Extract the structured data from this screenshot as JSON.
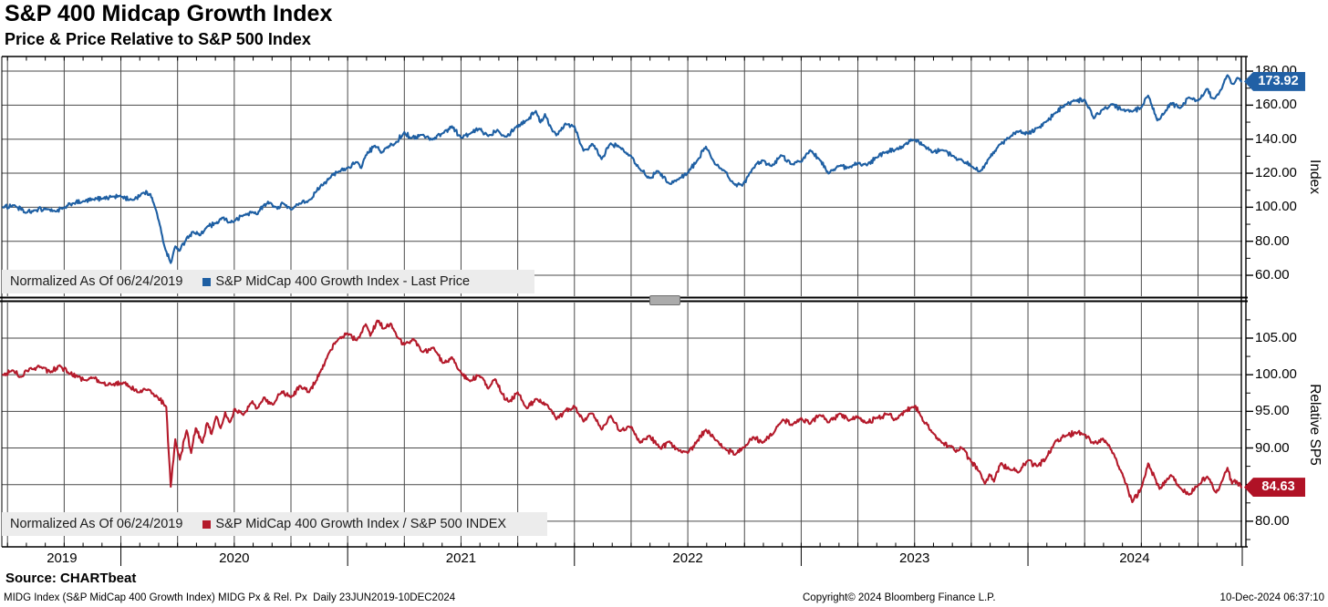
{
  "header": {
    "title": "S&P 400 Midcap Growth Index",
    "subtitle": "Price & Price Relative to S&P 500 Index"
  },
  "colors": {
    "blue": "#1e5fa3",
    "blue_badge": "#2160a5",
    "red": "#b41a2b",
    "red_badge": "#b01226",
    "grid": "#4a4a4a",
    "frame": "#000000",
    "legend_bg": "#ececec",
    "handle": "#ababab"
  },
  "x_axis": {
    "start": 2019.475,
    "end": 2024.945,
    "year_labels": [
      "2019",
      "2020",
      "2021",
      "2022",
      "2023",
      "2024"
    ],
    "year_label_positions": [
      2019.74,
      2020.5,
      2021.5,
      2022.5,
      2023.5,
      2024.47
    ],
    "year_boundaries": [
      2020,
      2021,
      2022,
      2023,
      2024,
      2024.945
    ]
  },
  "chart_data": [
    {
      "type": "line",
      "panel": "top",
      "axis_title": "Index",
      "legend_prefix": "Normalized As Of 06/24/2019",
      "series_label": "S&P MidCap 400 Growth Index - Last Price",
      "last_price_label": "173.92",
      "last_value": 173.92,
      "color": "#1e5fa3",
      "badge_color": "#2160a5",
      "noise": 1.5,
      "value_range": [
        47.7,
        188.6
      ],
      "ticks": {
        "major": [
          60,
          80,
          100,
          120,
          140,
          160,
          180
        ],
        "labels": [
          "60.00",
          "80.00",
          "100.00",
          "120.00",
          "140.00",
          "160.00",
          "180.00"
        ],
        "minor": [
          70,
          90,
          110,
          130,
          150,
          170
        ]
      },
      "points": [
        [
          2019.48,
          100
        ],
        [
          2019.53,
          101.3
        ],
        [
          2019.58,
          96.6
        ],
        [
          2019.62,
          98.2
        ],
        [
          2019.67,
          99.2
        ],
        [
          2019.71,
          97.6
        ],
        [
          2019.75,
          99.5
        ],
        [
          2019.79,
          102.4
        ],
        [
          2019.83,
          103.2
        ],
        [
          2019.88,
          104.6
        ],
        [
          2019.92,
          105.2
        ],
        [
          2019.96,
          106.2
        ],
        [
          2020.0,
          106.4
        ],
        [
          2020.05,
          104.2
        ],
        [
          2020.1,
          108.6
        ],
        [
          2020.13,
          107.8
        ],
        [
          2020.16,
          96
        ],
        [
          2020.19,
          78
        ],
        [
          2020.22,
          67.2
        ],
        [
          2020.24,
          77
        ],
        [
          2020.26,
          74.5
        ],
        [
          2020.29,
          82
        ],
        [
          2020.32,
          85.5
        ],
        [
          2020.35,
          83.5
        ],
        [
          2020.38,
          88.5
        ],
        [
          2020.42,
          90.5
        ],
        [
          2020.45,
          93.8
        ],
        [
          2020.48,
          91.2
        ],
        [
          2020.5,
          91.8
        ],
        [
          2020.54,
          95.2
        ],
        [
          2020.58,
          97.2
        ],
        [
          2020.6,
          95.8
        ],
        [
          2020.63,
          101.2
        ],
        [
          2020.66,
          102.6
        ],
        [
          2020.69,
          99
        ],
        [
          2020.71,
          102.8
        ],
        [
          2020.75,
          98.6
        ],
        [
          2020.79,
          102.2
        ],
        [
          2020.83,
          104.2
        ],
        [
          2020.86,
          109
        ],
        [
          2020.88,
          112.5
        ],
        [
          2020.92,
          117.2
        ],
        [
          2020.96,
          121
        ],
        [
          2021.0,
          123.2
        ],
        [
          2021.04,
          126.5
        ],
        [
          2021.06,
          123
        ],
        [
          2021.08,
          130.5
        ],
        [
          2021.12,
          136.2
        ],
        [
          2021.15,
          132
        ],
        [
          2021.17,
          134.8
        ],
        [
          2021.21,
          137.5
        ],
        [
          2021.25,
          144.2
        ],
        [
          2021.28,
          140.6
        ],
        [
          2021.33,
          142.6
        ],
        [
          2021.37,
          139.8
        ],
        [
          2021.42,
          143.6
        ],
        [
          2021.46,
          147.6
        ],
        [
          2021.5,
          140.8
        ],
        [
          2021.54,
          143.2
        ],
        [
          2021.58,
          146.2
        ],
        [
          2021.62,
          141.8
        ],
        [
          2021.66,
          145.6
        ],
        [
          2021.7,
          141.4
        ],
        [
          2021.74,
          147
        ],
        [
          2021.79,
          151.2
        ],
        [
          2021.83,
          156.6
        ],
        [
          2021.85,
          149.8
        ],
        [
          2021.87,
          154.8
        ],
        [
          2021.9,
          146
        ],
        [
          2021.92,
          142.2
        ],
        [
          2021.96,
          149.2
        ],
        [
          2022.0,
          147.6
        ],
        [
          2022.04,
          133.2
        ],
        [
          2022.08,
          137.2
        ],
        [
          2022.12,
          128.2
        ],
        [
          2022.16,
          137.6
        ],
        [
          2022.2,
          135.2
        ],
        [
          2022.25,
          130.2
        ],
        [
          2022.29,
          122.2
        ],
        [
          2022.33,
          117.2
        ],
        [
          2022.37,
          121.2
        ],
        [
          2022.42,
          113.8
        ],
        [
          2022.46,
          116.4
        ],
        [
          2022.5,
          120.4
        ],
        [
          2022.54,
          127.2
        ],
        [
          2022.58,
          135.6
        ],
        [
          2022.62,
          125.2
        ],
        [
          2022.66,
          121.6
        ],
        [
          2022.7,
          114.2
        ],
        [
          2022.74,
          112.6
        ],
        [
          2022.79,
          123.2
        ],
        [
          2022.83,
          127.6
        ],
        [
          2022.87,
          124.2
        ],
        [
          2022.91,
          130.6
        ],
        [
          2022.96,
          125.2
        ],
        [
          2023.0,
          126.6
        ],
        [
          2023.04,
          133.6
        ],
        [
          2023.08,
          128.2
        ],
        [
          2023.12,
          119.8
        ],
        [
          2023.16,
          124.2
        ],
        [
          2023.21,
          123.2
        ],
        [
          2023.25,
          126.2
        ],
        [
          2023.29,
          124.6
        ],
        [
          2023.33,
          129.2
        ],
        [
          2023.37,
          132.2
        ],
        [
          2023.42,
          134.2
        ],
        [
          2023.46,
          137.2
        ],
        [
          2023.5,
          139.6
        ],
        [
          2023.54,
          136.6
        ],
        [
          2023.58,
          132.2
        ],
        [
          2023.62,
          133.6
        ],
        [
          2023.67,
          130.2
        ],
        [
          2023.71,
          127.6
        ],
        [
          2023.75,
          124.2
        ],
        [
          2023.79,
          121.2
        ],
        [
          2023.83,
          129.2
        ],
        [
          2023.87,
          136.2
        ],
        [
          2023.92,
          141.2
        ],
        [
          2023.96,
          144.6
        ],
        [
          2024.0,
          143.2
        ],
        [
          2024.04,
          146.6
        ],
        [
          2024.08,
          150.2
        ],
        [
          2024.12,
          155.2
        ],
        [
          2024.17,
          160.6
        ],
        [
          2024.21,
          162.6
        ],
        [
          2024.25,
          163.2
        ],
        [
          2024.29,
          152.2
        ],
        [
          2024.33,
          157.6
        ],
        [
          2024.37,
          160.6
        ],
        [
          2024.42,
          157.2
        ],
        [
          2024.46,
          156.2
        ],
        [
          2024.5,
          158.6
        ],
        [
          2024.53,
          165.6
        ],
        [
          2024.57,
          151
        ],
        [
          2024.6,
          155
        ],
        [
          2024.63,
          161.2
        ],
        [
          2024.67,
          158.2
        ],
        [
          2024.71,
          164.6
        ],
        [
          2024.75,
          162.6
        ],
        [
          2024.79,
          169.6
        ],
        [
          2024.81,
          164.2
        ],
        [
          2024.84,
          166.2
        ],
        [
          2024.88,
          177.6
        ],
        [
          2024.9,
          172.6
        ],
        [
          2024.92,
          175.6
        ],
        [
          2024.94,
          173.92
        ]
      ]
    },
    {
      "type": "line",
      "panel": "bottom",
      "axis_title": "Relative SP5",
      "legend_prefix": "Normalized As Of 06/24/2019",
      "series_label": "S&P MidCap 400 Growth Index / S&P 500 INDEX",
      "last_price_label": "84.63",
      "last_value": 84.63,
      "color": "#b41a2b",
      "badge_color": "#b01226",
      "noise": 0.4,
      "value_range": [
        76.5,
        109.85
      ],
      "ticks": {
        "major": [
          80,
          85,
          90,
          95,
          100,
          105
        ],
        "labels": [
          "80.00",
          "85.00",
          "90.00",
          "95.00",
          "100.00",
          "105.00"
        ],
        "minor": [
          77.5,
          82.5,
          87.5,
          92.5,
          97.5,
          102.5,
          107.5
        ]
      },
      "points": [
        [
          2019.48,
          100
        ],
        [
          2019.52,
          100.6
        ],
        [
          2019.56,
          99.7
        ],
        [
          2019.6,
          100.9
        ],
        [
          2019.65,
          101
        ],
        [
          2019.69,
          100.3
        ],
        [
          2019.73,
          101.3
        ],
        [
          2019.77,
          100.2
        ],
        [
          2019.81,
          99.7
        ],
        [
          2019.85,
          99.2
        ],
        [
          2019.88,
          99.6
        ],
        [
          2019.92,
          98.9
        ],
        [
          2019.96,
          98.6
        ],
        [
          2020.0,
          98.9
        ],
        [
          2020.04,
          98.3
        ],
        [
          2020.08,
          97.6
        ],
        [
          2020.12,
          98
        ],
        [
          2020.16,
          97
        ],
        [
          2020.2,
          95.6
        ],
        [
          2020.22,
          84.7
        ],
        [
          2020.24,
          91.2
        ],
        [
          2020.26,
          88.4
        ],
        [
          2020.29,
          92.4
        ],
        [
          2020.31,
          89.3
        ],
        [
          2020.33,
          92.7
        ],
        [
          2020.36,
          90.7
        ],
        [
          2020.38,
          93.4
        ],
        [
          2020.4,
          91.9
        ],
        [
          2020.42,
          94.3
        ],
        [
          2020.44,
          92.7
        ],
        [
          2020.46,
          94.9
        ],
        [
          2020.48,
          93.5
        ],
        [
          2020.5,
          95.3
        ],
        [
          2020.54,
          94.5
        ],
        [
          2020.58,
          96.4
        ],
        [
          2020.6,
          95.4
        ],
        [
          2020.63,
          96.9
        ],
        [
          2020.67,
          95.9
        ],
        [
          2020.71,
          97.7
        ],
        [
          2020.75,
          96.9
        ],
        [
          2020.79,
          98.5
        ],
        [
          2020.83,
          97.6
        ],
        [
          2020.88,
          100.4
        ],
        [
          2020.92,
          103.1
        ],
        [
          2020.96,
          104.9
        ],
        [
          2021.0,
          105.6
        ],
        [
          2021.04,
          104.7
        ],
        [
          2021.08,
          106.9
        ],
        [
          2021.1,
          105.3
        ],
        [
          2021.13,
          107.4
        ],
        [
          2021.16,
          106.3
        ],
        [
          2021.19,
          107
        ],
        [
          2021.22,
          105.1
        ],
        [
          2021.25,
          104.1
        ],
        [
          2021.29,
          104.9
        ],
        [
          2021.33,
          103.1
        ],
        [
          2021.38,
          103.7
        ],
        [
          2021.42,
          101.6
        ],
        [
          2021.46,
          102.4
        ],
        [
          2021.5,
          100.3
        ],
        [
          2021.54,
          99.1
        ],
        [
          2021.58,
          99.9
        ],
        [
          2021.62,
          98.1
        ],
        [
          2021.65,
          99.4
        ],
        [
          2021.68,
          97.4
        ],
        [
          2021.71,
          96.3
        ],
        [
          2021.75,
          97.6
        ],
        [
          2021.79,
          95.4
        ],
        [
          2021.83,
          96.7
        ],
        [
          2021.88,
          95.9
        ],
        [
          2021.92,
          93.9
        ],
        [
          2021.96,
          95.1
        ],
        [
          2022.0,
          95.7
        ],
        [
          2022.04,
          93.6
        ],
        [
          2022.08,
          94.7
        ],
        [
          2022.12,
          92.5
        ],
        [
          2022.16,
          94.4
        ],
        [
          2022.2,
          92.3
        ],
        [
          2022.25,
          92.9
        ],
        [
          2022.29,
          90.7
        ],
        [
          2022.33,
          91.7
        ],
        [
          2022.38,
          89.9
        ],
        [
          2022.42,
          90.9
        ],
        [
          2022.46,
          89.6
        ],
        [
          2022.5,
          89.3
        ],
        [
          2022.54,
          90.9
        ],
        [
          2022.58,
          92.5
        ],
        [
          2022.62,
          91.1
        ],
        [
          2022.67,
          89.7
        ],
        [
          2022.71,
          89.1
        ],
        [
          2022.75,
          90.1
        ],
        [
          2022.79,
          91.5
        ],
        [
          2022.83,
          90.7
        ],
        [
          2022.88,
          92.1
        ],
        [
          2022.92,
          93.9
        ],
        [
          2022.96,
          93.1
        ],
        [
          2023.0,
          94.1
        ],
        [
          2023.04,
          93.3
        ],
        [
          2023.08,
          94.5
        ],
        [
          2023.12,
          93.5
        ],
        [
          2023.17,
          94.7
        ],
        [
          2023.21,
          93.7
        ],
        [
          2023.25,
          94.3
        ],
        [
          2023.29,
          93.4
        ],
        [
          2023.33,
          94.1
        ],
        [
          2023.38,
          94.6
        ],
        [
          2023.42,
          93.9
        ],
        [
          2023.46,
          95.1
        ],
        [
          2023.5,
          95.7
        ],
        [
          2023.52,
          94.9
        ],
        [
          2023.54,
          93.6
        ],
        [
          2023.58,
          92.1
        ],
        [
          2023.62,
          90.7
        ],
        [
          2023.67,
          90.1
        ],
        [
          2023.69,
          89.6
        ],
        [
          2023.71,
          90
        ],
        [
          2023.75,
          88.1
        ],
        [
          2023.79,
          86.6
        ],
        [
          2023.81,
          85.1
        ],
        [
          2023.83,
          86.4
        ],
        [
          2023.85,
          85.4
        ],
        [
          2023.88,
          87.9
        ],
        [
          2023.92,
          87.1
        ],
        [
          2023.96,
          86.7
        ],
        [
          2024.0,
          88.3
        ],
        [
          2024.04,
          87.5
        ],
        [
          2024.08,
          88.6
        ],
        [
          2024.12,
          90.9
        ],
        [
          2024.17,
          91.7
        ],
        [
          2024.21,
          92.1
        ],
        [
          2024.25,
          91.8
        ],
        [
          2024.29,
          90.6
        ],
        [
          2024.33,
          91.3
        ],
        [
          2024.38,
          89.1
        ],
        [
          2024.42,
          86.1
        ],
        [
          2024.46,
          82.6
        ],
        [
          2024.5,
          84.6
        ],
        [
          2024.53,
          87.9
        ],
        [
          2024.56,
          85.9
        ],
        [
          2024.58,
          84.4
        ],
        [
          2024.63,
          86.3
        ],
        [
          2024.67,
          84.6
        ],
        [
          2024.71,
          83.6
        ],
        [
          2024.75,
          84.9
        ],
        [
          2024.79,
          86.1
        ],
        [
          2024.83,
          83.9
        ],
        [
          2024.85,
          85.1
        ],
        [
          2024.88,
          87.3
        ],
        [
          2024.9,
          85.1
        ],
        [
          2024.92,
          85.5
        ],
        [
          2024.94,
          84.63
        ]
      ]
    }
  ],
  "footer": {
    "source": "Source: CHARTbeat",
    "description": "MIDG Index (S&P MidCap 400 Growth Index) MIDG Px & Rel. Px  Daily 23JUN2019-10DEC2024",
    "copyright": "Copyright© 2024 Bloomberg Finance L.P.",
    "timestamp": "10-Dec-2024 06:37:10"
  }
}
